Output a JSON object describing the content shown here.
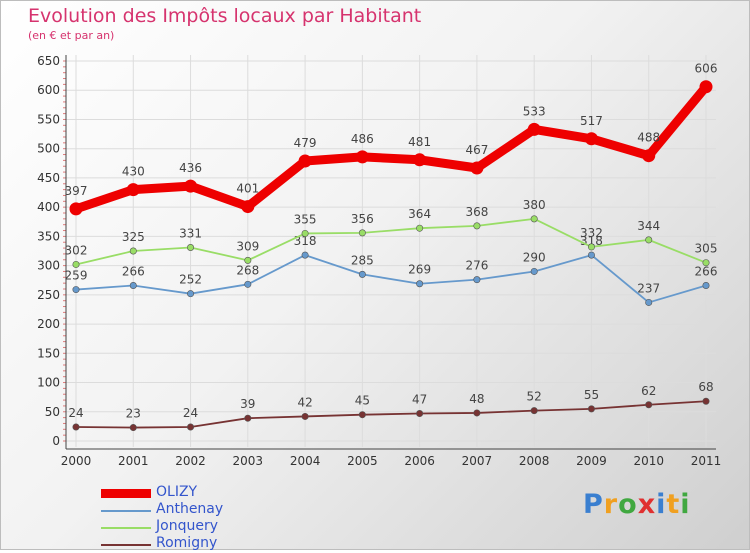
{
  "header": {
    "title": "Evolution des Impôts locaux par Habitant",
    "subtitle": "(en € et par an)"
  },
  "logo": {
    "text": "Proxiti",
    "letters": [
      "P",
      "r",
      "o",
      "x",
      "i",
      "t",
      "i"
    ],
    "colors": [
      "#3a7fd0",
      "#f0a020",
      "#40a840",
      "#e03030",
      "#3a7fd0",
      "#f0a020",
      "#40a840"
    ]
  },
  "chart_data": {
    "type": "line",
    "x": [
      "2000",
      "2001",
      "2002",
      "2003",
      "2004",
      "2005",
      "2006",
      "2007",
      "2008",
      "2009",
      "2010",
      "2011"
    ],
    "ylim": [
      0,
      650
    ],
    "yticks": [
      0,
      50,
      100,
      150,
      200,
      250,
      300,
      350,
      400,
      450,
      500,
      550,
      600,
      650
    ],
    "grid": true,
    "legend_position": "bottom-left",
    "series": [
      {
        "name": "OLIZY",
        "color": "#ee0000",
        "emphasis": true,
        "values": [
          397,
          430,
          436,
          401,
          479,
          486,
          481,
          467,
          533,
          517,
          488,
          606
        ]
      },
      {
        "name": "Anthenay",
        "color": "#6699cc",
        "emphasis": false,
        "values": [
          259,
          266,
          252,
          268,
          318,
          285,
          269,
          276,
          290,
          318,
          237,
          266
        ]
      },
      {
        "name": "Jonquery",
        "color": "#99dd66",
        "emphasis": false,
        "values": [
          302,
          325,
          331,
          309,
          355,
          356,
          364,
          368,
          380,
          332,
          344,
          305
        ]
      },
      {
        "name": "Romigny",
        "color": "#773333",
        "emphasis": false,
        "values": [
          24,
          23,
          24,
          39,
          42,
          45,
          47,
          48,
          52,
          55,
          62,
          68
        ]
      }
    ]
  }
}
